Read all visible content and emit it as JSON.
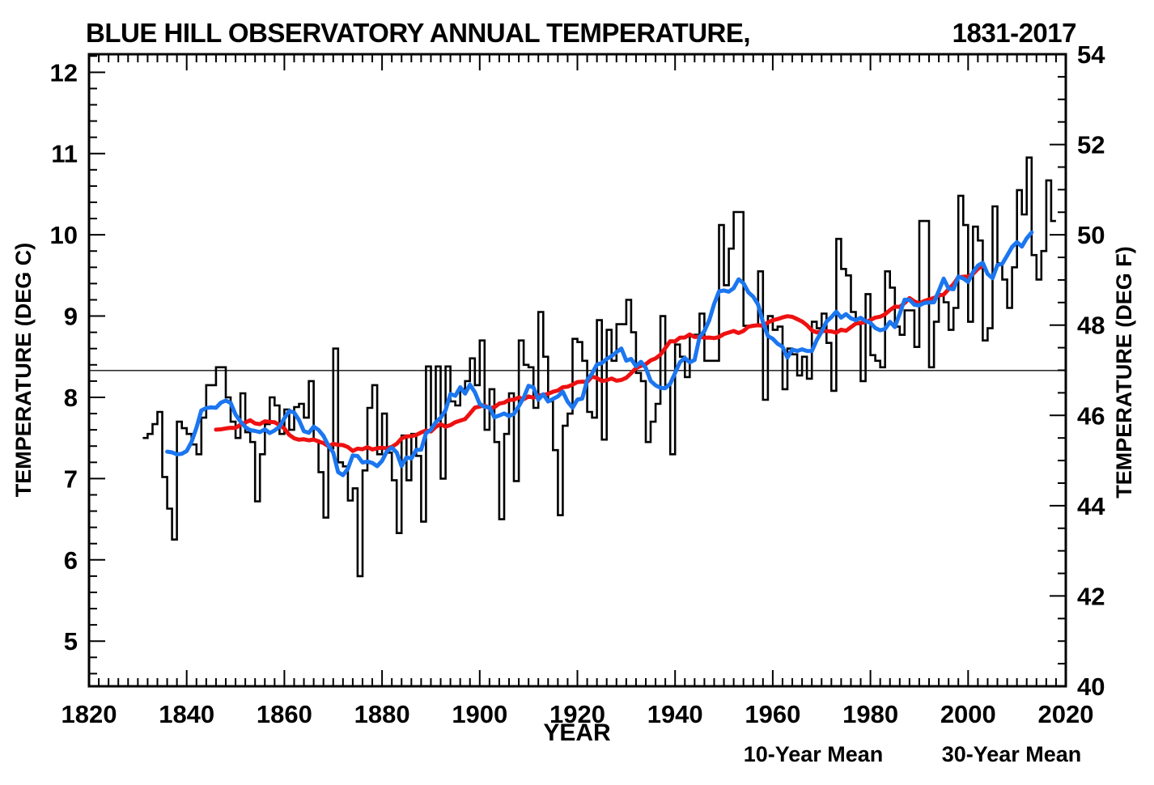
{
  "title": "BLUE HILL OBSERVATORY ANNUAL TEMPERATURE,",
  "title_range": "1831-2017",
  "legend": [
    {
      "label": "10-Year Mean",
      "color": "#1b76f0"
    },
    {
      "label": "30-Year Mean",
      "color": "#ee1111"
    }
  ],
  "chart_data": {
    "type": "line",
    "subtype": "annual-step-series-with-centered-running-means",
    "title": "BLUE HILL OBSERVATORY ANNUAL TEMPERATURE, 1831-2017",
    "xlabel": "YEAR",
    "ylabel_left": "TEMPERATURE (DEG C)",
    "ylabel_right": "TEMPERATURE (DEG F)",
    "x_range_years": [
      1820,
      2020
    ],
    "y_range_deg_f": [
      40,
      54
    ],
    "y_range_deg_c": [
      4.444,
      12.222
    ],
    "x_major_ticks": [
      1820,
      1840,
      1860,
      1880,
      1900,
      1920,
      1940,
      1960,
      1980,
      2000,
      2020
    ],
    "x_minor_tick_step_years": 2,
    "y_major_ticks_c": [
      5,
      6,
      7,
      8,
      9,
      10,
      11,
      12
    ],
    "y_minor_tick_step_c": 0.2,
    "y_major_ticks_f": [
      40,
      42,
      44,
      46,
      48,
      50,
      52,
      54
    ],
    "y_minor_tick_step_f": 0.5,
    "reference_line_c": 8.33,
    "grid": "off",
    "legend_position": "bottom-right",
    "annual_series_color": "#000000",
    "start_year": 1831,
    "end_year": 2017,
    "annual_temps_c": [
      7.5,
      7.55,
      7.67,
      7.82,
      7.02,
      6.63,
      6.25,
      7.7,
      7.62,
      7.55,
      7.42,
      7.3,
      7.75,
      8.15,
      8.15,
      8.37,
      8.37,
      8.0,
      7.7,
      7.5,
      8.05,
      7.57,
      7.45,
      6.72,
      7.3,
      7.67,
      8.0,
      7.9,
      7.55,
      7.85,
      7.6,
      7.88,
      7.92,
      7.75,
      8.2,
      7.47,
      7.08,
      6.52,
      7.37,
      8.6,
      7.2,
      7.15,
      6.73,
      6.88,
      5.8,
      7.1,
      7.87,
      8.15,
      7.3,
      7.8,
      7.32,
      6.98,
      6.33,
      7.53,
      6.98,
      7.55,
      7.28,
      6.47,
      8.38,
      7.65,
      8.38,
      7.0,
      8.38,
      7.95,
      7.9,
      8.1,
      8.2,
      8.48,
      8.15,
      8.7,
      7.6,
      8.1,
      7.45,
      6.5,
      7.55,
      8.05,
      6.97,
      8.7,
      8.4,
      8.37,
      7.87,
      9.05,
      8.5,
      7.95,
      7.35,
      6.55,
      7.65,
      7.8,
      8.72,
      8.68,
      8.45,
      7.82,
      7.75,
      8.95,
      7.48,
      8.83,
      8.45,
      8.9,
      8.9,
      9.2,
      8.8,
      8.3,
      8.2,
      7.45,
      7.7,
      7.92,
      9.0,
      8.15,
      7.3,
      8.65,
      8.5,
      8.25,
      8.75,
      8.77,
      9.03,
      8.45,
      8.45,
      8.45,
      10.12,
      9.38,
      9.83,
      10.28,
      10.28,
      8.88,
      8.88,
      8.88,
      9.55,
      7.97,
      9.0,
      8.83,
      8.87,
      8.1,
      8.6,
      8.53,
      8.27,
      8.5,
      8.23,
      8.93,
      8.85,
      9.03,
      8.67,
      8.08,
      9.95,
      9.58,
      9.5,
      9.05,
      8.9,
      8.2,
      9.27,
      8.52,
      8.45,
      8.37,
      9.55,
      9.35,
      8.87,
      8.77,
      9.07,
      9.07,
      8.62,
      10.17,
      10.17,
      8.37,
      8.93,
      9.27,
      9.17,
      8.83,
      9.1,
      10.48,
      10.12,
      8.93,
      10.1,
      9.93,
      8.7,
      8.85,
      10.35,
      9.65,
      9.45,
      9.1,
      9.6,
      10.55,
      10.25,
      10.95,
      9.75,
      9.45,
      9.8,
      10.67,
      10.17
    ],
    "series": [
      {
        "name": "Annual",
        "style": "step",
        "color": "#000000"
      },
      {
        "name": "10-Year Mean",
        "style": "centered-moving-mean",
        "window": 10,
        "color": "#1b76f0"
      },
      {
        "name": "30-Year Mean",
        "style": "centered-moving-mean",
        "window": 30,
        "color": "#ee1111"
      }
    ]
  }
}
